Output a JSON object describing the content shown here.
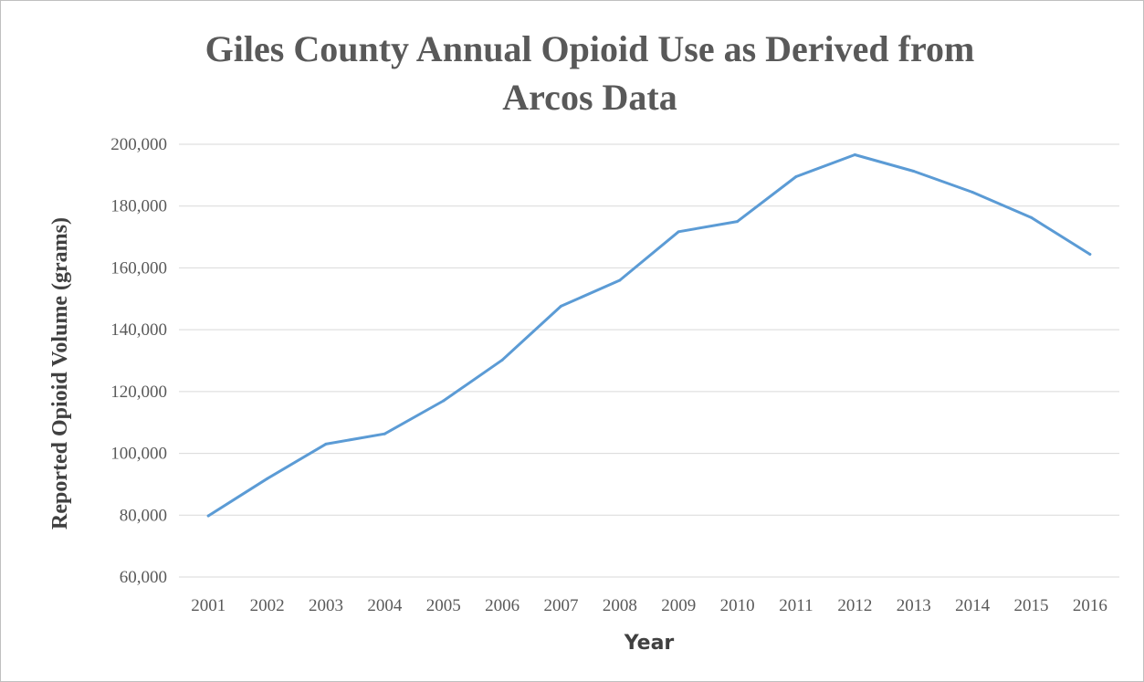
{
  "chart_data": {
    "type": "line",
    "title_lines": [
      "Giles County Annual Opioid Use as Derived from",
      "Arcos Data"
    ],
    "xlabel": "Year",
    "ylabel": "Reported Opioid Volume (grams)",
    "categories": [
      "2001",
      "2002",
      "2003",
      "2004",
      "2005",
      "2006",
      "2007",
      "2008",
      "2009",
      "2010",
      "2011",
      "2012",
      "2013",
      "2014",
      "2015",
      "2016"
    ],
    "series": [
      {
        "values": [
          79800,
          91800,
          103000,
          106300,
          117000,
          130200,
          147600,
          156000,
          171700,
          175000,
          189500,
          196600,
          191300,
          184500,
          176300,
          164400
        ],
        "color": "#5b9bd5"
      }
    ],
    "ylim": [
      60000,
      200000
    ],
    "ytick_step": 20000,
    "ytick_labels": [
      "60,000",
      "80,000",
      "100,000",
      "120,000",
      "140,000",
      "160,000",
      "180,000",
      "200,000"
    ],
    "grid": "horizontal",
    "legend": "none"
  }
}
